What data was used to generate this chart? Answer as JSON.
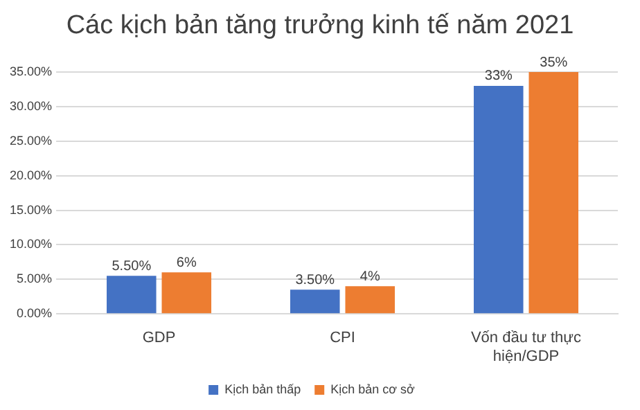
{
  "chart_data": {
    "type": "bar",
    "title": "Các kịch bản tăng trưởng kinh tế năm 2021",
    "categories": [
      "GDP",
      "CPI",
      "Vốn đầu tư thực hiện/GDP"
    ],
    "series": [
      {
        "name": "Kịch bản thấp",
        "color": "#4472c4",
        "values": [
          5.5,
          3.5,
          33
        ],
        "value_labels": [
          "5.50%",
          "3.50%",
          "33%"
        ]
      },
      {
        "name": "Kịch bản cơ sở",
        "color": "#ed7d31",
        "values": [
          6,
          4,
          35
        ],
        "value_labels": [
          "6%",
          "4%",
          "35%"
        ]
      }
    ],
    "ylim": [
      0,
      35
    ],
    "yticks": [
      {
        "value": 0,
        "label": "0.00%"
      },
      {
        "value": 5,
        "label": "5.00%"
      },
      {
        "value": 10,
        "label": "10.00%"
      },
      {
        "value": 15,
        "label": "15.00%"
      },
      {
        "value": 20,
        "label": "20.00%"
      },
      {
        "value": 25,
        "label": "25.00%"
      },
      {
        "value": 30,
        "label": "30.00%"
      },
      {
        "value": 35,
        "label": "35.00%"
      }
    ],
    "grid": "y",
    "legend": "bottom"
  }
}
